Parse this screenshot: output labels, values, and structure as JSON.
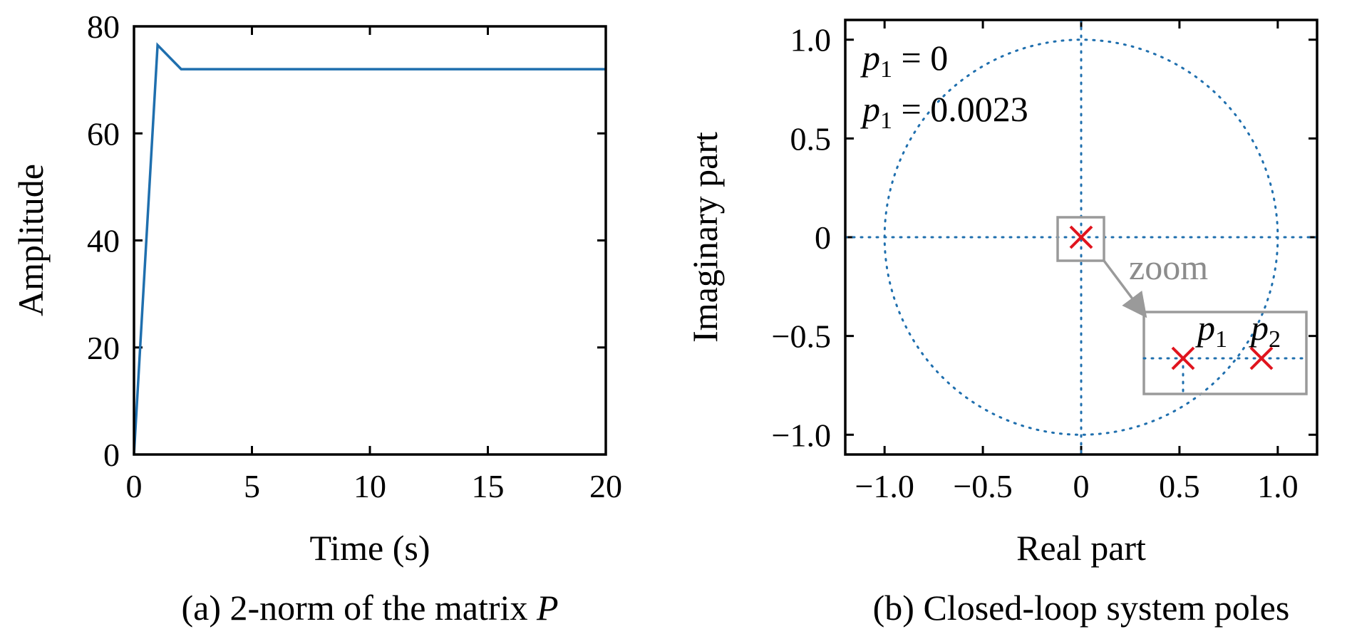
{
  "colors": {
    "series": "#1f6fae",
    "poles": "#e0141e",
    "zoom": "#9a9a9a",
    "axes": "#000000"
  },
  "chart_data": [
    {
      "type": "line",
      "caption": "(a) 2-norm of the matrix P",
      "caption_prefix": "(a) 2-norm of the matrix ",
      "caption_var": "P",
      "xlabel": "Time (s)",
      "ylabel": "Amplitude",
      "xlim": [
        0,
        20
      ],
      "ylim": [
        0,
        80
      ],
      "xticks": [
        0,
        5,
        10,
        15,
        20
      ],
      "xtick_labels": [
        "0",
        "5",
        "10",
        "15",
        "20"
      ],
      "yticks": [
        0,
        20,
        40,
        60,
        80
      ],
      "ytick_labels": [
        "0",
        "20",
        "40",
        "60",
        "80"
      ],
      "grid": false,
      "series": [
        {
          "x": [
            0,
            1,
            2,
            20
          ],
          "y": [
            0,
            76.5,
            72,
            72
          ]
        }
      ]
    },
    {
      "type": "scatter",
      "caption": "(b) Closed-loop system poles",
      "xlabel": "Real part",
      "ylabel": "Imaginary part",
      "xlim": [
        -1.2,
        1.2
      ],
      "ylim": [
        -1.1,
        1.1
      ],
      "xticks": [
        -1.0,
        -0.5,
        0,
        0.5,
        1.0
      ],
      "xtick_labels": [
        "−1.0",
        "−0.5",
        "0",
        "0.5",
        "1.0"
      ],
      "yticks": [
        -1.0,
        -0.5,
        0,
        0.5,
        1.0
      ],
      "ytick_labels": [
        "−1.0",
        "−0.5",
        "0",
        "0.5",
        "1.0"
      ],
      "grid": false,
      "unit_circle": {
        "radius": 1.0,
        "style": "dotted"
      },
      "poles": [
        {
          "x": 0,
          "y": 0
        }
      ],
      "annotations": [
        {
          "var": "p",
          "sub": "1",
          "text": " = 0"
        },
        {
          "var": "p",
          "sub": "1",
          "text": " = 0.0023"
        }
      ],
      "zoom_label": "zoom",
      "zoom_inset_poles": [
        {
          "var": "p",
          "sub": "1"
        },
        {
          "var": "p",
          "sub": "2"
        }
      ]
    }
  ]
}
